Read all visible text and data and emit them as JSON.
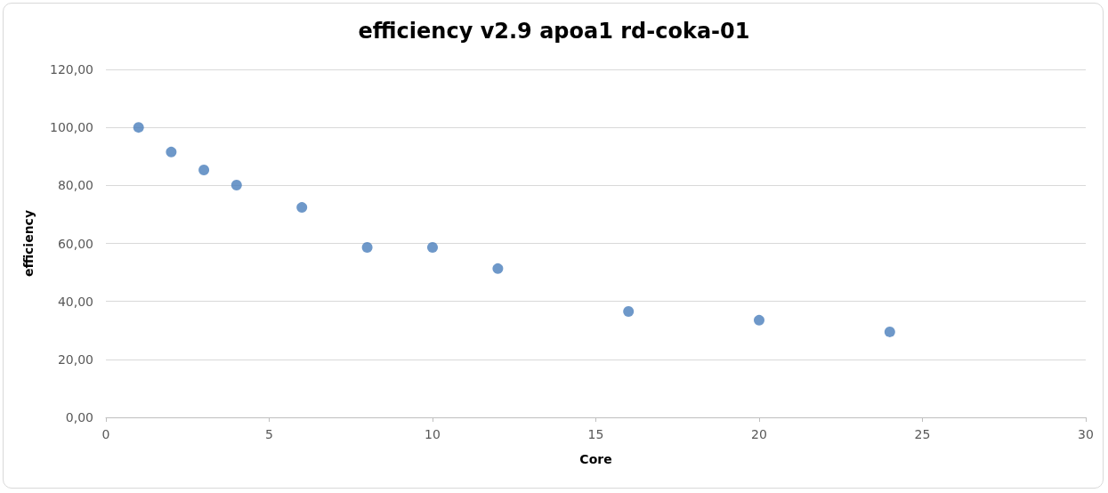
{
  "chart_data": {
    "type": "scatter",
    "title": "efficiency v2.9 apoa1 rd-coka-01",
    "xlabel": "Core",
    "ylabel": "efficiency",
    "x": [
      1,
      2,
      3,
      4,
      6,
      8,
      10,
      12,
      16,
      20,
      24
    ],
    "series": [
      {
        "color": "#4a7ebb",
        "values": [
          100,
          91.5,
          85.3,
          80.1,
          72.4,
          58.6,
          58.6,
          51.3,
          36.5,
          33.5,
          29.5
        ]
      }
    ],
    "xlim": [
      0,
      30
    ],
    "xticks": [
      0,
      5,
      10,
      15,
      20,
      25,
      30
    ],
    "ylim": [
      0,
      120
    ],
    "yticks": [
      {
        "value": 0,
        "label": "0,00"
      },
      {
        "value": 20,
        "label": "20,00"
      },
      {
        "value": 40,
        "label": "40,00"
      },
      {
        "value": 60,
        "label": "60,00"
      },
      {
        "value": 80,
        "label": "80,00"
      },
      {
        "value": 100,
        "label": "100,00"
      },
      {
        "value": 120,
        "label": "120,00"
      }
    ],
    "grid": "y",
    "marker": "circle"
  }
}
